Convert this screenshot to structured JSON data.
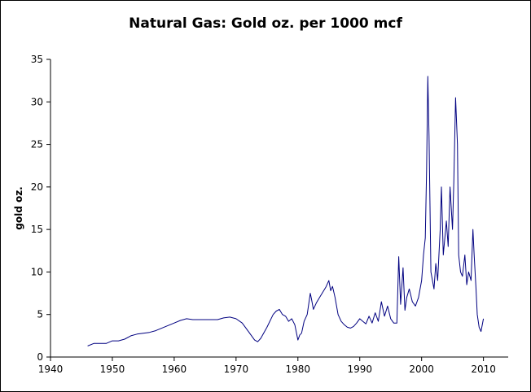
{
  "chart_data": {
    "type": "line",
    "title": "Natural Gas: Gold oz. per 1000 mcf",
    "xlabel": "",
    "ylabel": "gold oz.",
    "xlim": [
      1940,
      2014
    ],
    "ylim": [
      0,
      35
    ],
    "x_ticks": [
      1940,
      1950,
      1960,
      1970,
      1980,
      1990,
      2000,
      2010
    ],
    "y_ticks": [
      0,
      5,
      10,
      15,
      20,
      25,
      30,
      35
    ],
    "grid": false,
    "legend": "none",
    "line_color": "#000080",
    "series": [
      {
        "x": [
          1946.0,
          1947.0,
          1948.0,
          1949.0,
          1950.0,
          1951.0,
          1952.0,
          1953.0,
          1954.0,
          1955.0,
          1956.0,
          1957.0,
          1958.0,
          1959.0,
          1960.0,
          1961.0,
          1962.0,
          1963.0,
          1964.0,
          1965.0,
          1966.0,
          1967.0,
          1968.0,
          1969.0,
          1970.0,
          1971.0,
          1972.0,
          1973.0,
          1973.5,
          1974.0,
          1975.0,
          1976.0,
          1976.5,
          1977.0,
          1977.5,
          1978.0,
          1978.5,
          1979.0,
          1979.5,
          1980.0,
          1980.3,
          1980.6,
          1981.0,
          1981.5,
          1982.0,
          1982.2,
          1982.5,
          1983.0,
          1983.5,
          1984.0,
          1984.5,
          1985.0,
          1985.3,
          1985.6,
          1986.0,
          1986.5,
          1987.0,
          1987.5,
          1988.0,
          1988.5,
          1989.0,
          1989.5,
          1990.0,
          1990.5,
          1991.0,
          1991.5,
          1992.0,
          1992.5,
          1993.0,
          1993.5,
          1994.0,
          1994.5,
          1995.0,
          1995.5,
          1996.0,
          1996.3,
          1996.6,
          1997.0,
          1997.3,
          1997.6,
          1998.0,
          1998.5,
          1999.0,
          1999.5,
          2000.0,
          2000.3,
          2000.6,
          2000.8,
          2001.0,
          2001.2,
          2001.5,
          2002.0,
          2002.3,
          2002.6,
          2003.0,
          2003.2,
          2003.5,
          2004.0,
          2004.3,
          2004.6,
          2005.0,
          2005.2,
          2005.5,
          2005.8,
          2006.0,
          2006.3,
          2006.6,
          2007.0,
          2007.3,
          2007.6,
          2008.0,
          2008.3,
          2008.5,
          2008.8,
          2009.0,
          2009.3,
          2009.6,
          2010.0
        ],
        "y": [
          1.3,
          1.6,
          1.6,
          1.6,
          1.9,
          1.9,
          2.1,
          2.5,
          2.7,
          2.8,
          2.9,
          3.1,
          3.4,
          3.7,
          4.0,
          4.3,
          4.5,
          4.4,
          4.4,
          4.4,
          4.4,
          4.4,
          4.6,
          4.7,
          4.5,
          4.0,
          3.0,
          2.0,
          1.8,
          2.2,
          3.5,
          5.0,
          5.4,
          5.6,
          5.0,
          4.8,
          4.2,
          4.5,
          3.8,
          2.0,
          2.6,
          2.8,
          4.2,
          5.0,
          7.5,
          6.8,
          5.6,
          6.4,
          7.0,
          7.6,
          8.2,
          9.0,
          7.8,
          8.3,
          7.0,
          5.0,
          4.2,
          3.8,
          3.5,
          3.4,
          3.6,
          4.0,
          4.5,
          4.2,
          3.9,
          4.8,
          4.0,
          5.2,
          4.2,
          6.5,
          4.8,
          6.0,
          4.5,
          4.0,
          4.0,
          11.8,
          6.2,
          10.5,
          5.5,
          7.0,
          8.0,
          6.5,
          6.0,
          7.0,
          9.0,
          12.0,
          14.0,
          22.0,
          33.0,
          26.0,
          10.0,
          8.0,
          11.0,
          9.0,
          15.0,
          20.0,
          12.0,
          16.0,
          13.0,
          20.0,
          15.0,
          20.5,
          30.5,
          25.0,
          12.0,
          10.0,
          9.5,
          12.0,
          8.5,
          10.0,
          9.0,
          15.0,
          12.0,
          8.0,
          5.0,
          3.5,
          3.0,
          4.5
        ]
      }
    ]
  }
}
